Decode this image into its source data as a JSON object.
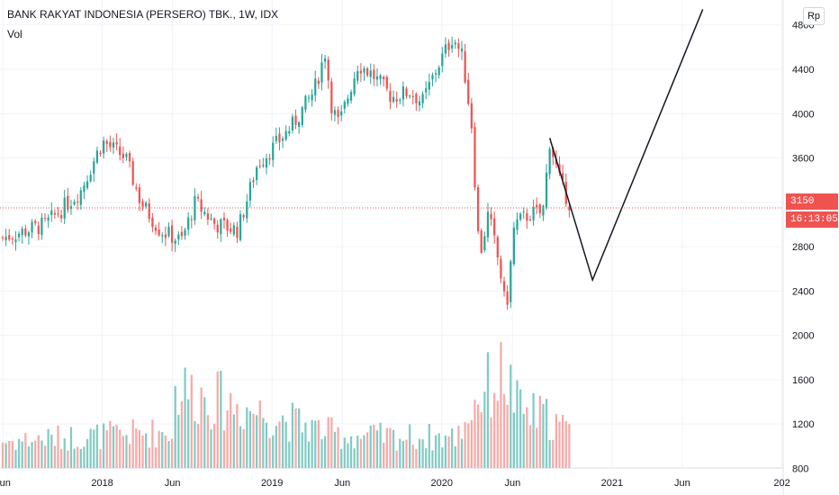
{
  "header": {
    "title": "BANK RAKYAT INDONESIA (PERSERO) TBK., 1W, IDX",
    "volume_label": "Vol",
    "currency_button": "Rp"
  },
  "price_scale": {
    "last_price": "3150",
    "countdown": "16:13:05"
  },
  "colors": {
    "up": "#26a69a",
    "down": "#ef5350",
    "up_volume": "#80cbc4",
    "down_volume": "#f7a9a7",
    "grid": "#f0f3fa",
    "projection_line": "#131722"
  },
  "chart_data": {
    "type": "candlestick",
    "title": "BANK RAKYAT INDONESIA (PERSERO) TBK., 1W, IDX",
    "x_axis": {
      "type": "time",
      "range": [
        "2017-06-01",
        "2021-12-31"
      ],
      "ticks": [
        {
          "date": "2017-06-01",
          "label": "Jun"
        },
        {
          "date": "2018-01-01",
          "label": "2018"
        },
        {
          "date": "2018-06-01",
          "label": "Jun"
        },
        {
          "date": "2019-01-01",
          "label": "2019"
        },
        {
          "date": "2019-06-01",
          "label": "Jun"
        },
        {
          "date": "2020-01-01",
          "label": "2020"
        },
        {
          "date": "2020-06-01",
          "label": "Jun"
        },
        {
          "date": "2021-01-01",
          "label": "2021"
        },
        {
          "date": "2021-06-01",
          "label": "Jun"
        },
        {
          "date": "2022-01-01",
          "label": "202"
        }
      ]
    },
    "y_axis": {
      "range": [
        560,
        5025
      ],
      "ticks": [
        800,
        1200,
        1600,
        2000,
        2400,
        2800,
        3200,
        3600,
        4000,
        4400,
        4800
      ],
      "grid": true
    },
    "price_anchors": [
      {
        "date": "2017-06-01",
        "price": 2880
      },
      {
        "date": "2017-09-01",
        "price": 3000
      },
      {
        "date": "2017-11-15",
        "price": 3300
      },
      {
        "date": "2018-01-01",
        "price": 3750
      },
      {
        "date": "2018-02-20",
        "price": 3600
      },
      {
        "date": "2018-03-25",
        "price": 3200
      },
      {
        "date": "2018-05-05",
        "price": 2950
      },
      {
        "date": "2018-06-20",
        "price": 2850
      },
      {
        "date": "2018-07-20",
        "price": 3200
      },
      {
        "date": "2018-09-01",
        "price": 3000
      },
      {
        "date": "2018-10-20",
        "price": 2950
      },
      {
        "date": "2018-12-01",
        "price": 3550
      },
      {
        "date": "2019-01-05",
        "price": 3700
      },
      {
        "date": "2019-02-15",
        "price": 3900
      },
      {
        "date": "2019-04-01",
        "price": 4200
      },
      {
        "date": "2019-04-25",
        "price": 4550
      },
      {
        "date": "2019-05-10",
        "price": 4050
      },
      {
        "date": "2019-05-25",
        "price": 3900
      },
      {
        "date": "2019-07-05",
        "price": 4450
      },
      {
        "date": "2019-08-05",
        "price": 4350
      },
      {
        "date": "2019-09-15",
        "price": 4150
      },
      {
        "date": "2019-10-25",
        "price": 4200
      },
      {
        "date": "2019-11-20",
        "price": 4100
      },
      {
        "date": "2019-12-20",
        "price": 4400
      },
      {
        "date": "2020-01-25",
        "price": 4700
      },
      {
        "date": "2020-02-15",
        "price": 4500
      },
      {
        "date": "2020-03-05",
        "price": 3900
      },
      {
        "date": "2020-03-22",
        "price": 2700
      },
      {
        "date": "2020-04-10",
        "price": 3100
      },
      {
        "date": "2020-05-05",
        "price": 2600
      },
      {
        "date": "2020-05-18",
        "price": 2200
      },
      {
        "date": "2020-06-05",
        "price": 3000
      },
      {
        "date": "2020-07-10",
        "price": 3100
      },
      {
        "date": "2020-08-05",
        "price": 3100
      },
      {
        "date": "2020-08-20",
        "price": 3750
      },
      {
        "date": "2020-09-10",
        "price": 3400
      },
      {
        "date": "2020-10-05",
        "price": 3150
      }
    ],
    "volume_pane_range": [
      0,
      1765
    ],
    "volume_note": "volume bars are drawn in the lower pane using the price-axis tick positions",
    "volume_anchors": [
      {
        "date": "2017-06-01",
        "volume": 350
      },
      {
        "date": "2018-06-01",
        "volume": 480
      },
      {
        "date": "2018-06-08",
        "volume": 1050
      },
      {
        "date": "2019-06-01",
        "volume": 420
      },
      {
        "date": "2020-02-01",
        "volume": 400
      },
      {
        "date": "2020-03-20",
        "volume": 950
      },
      {
        "date": "2020-05-15",
        "volume": 1250
      },
      {
        "date": "2020-06-15",
        "volume": 750
      },
      {
        "date": "2020-08-20",
        "volume": 650
      },
      {
        "date": "2020-10-05",
        "volume": 450
      }
    ],
    "projection_line": [
      {
        "date": "2020-08-20",
        "price": 3780
      },
      {
        "date": "2020-11-20",
        "price": 2500
      },
      {
        "date": "2021-07-15",
        "price": 4940
      }
    ],
    "last_price": 3150
  }
}
